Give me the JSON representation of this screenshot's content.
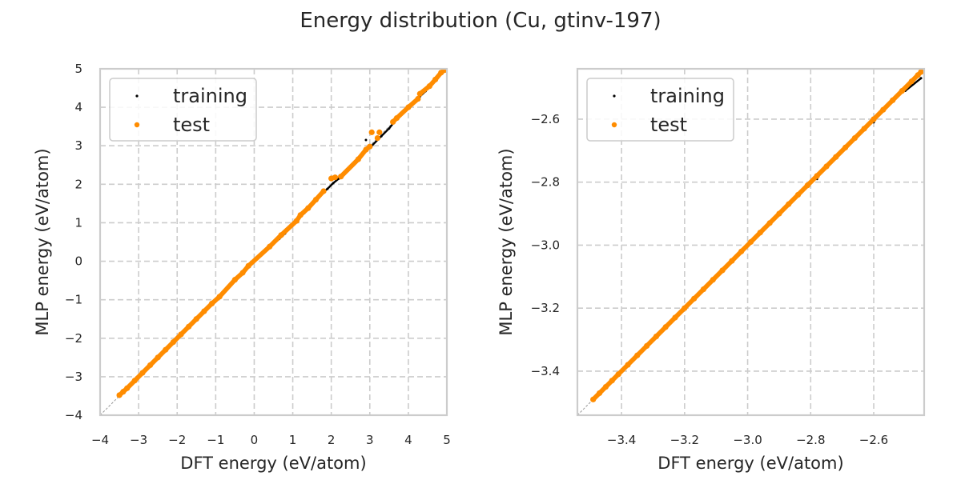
{
  "figure": {
    "title": "Energy distribution (Cu, gtinv-197)"
  },
  "colors": {
    "training": "#000000",
    "test": "#ff8c00",
    "grid": "#cccccc",
    "spine": "#cccccc",
    "diagonal": "#9a9a9a"
  },
  "chart_data": [
    {
      "type": "scatter",
      "xlabel": "DFT energy (eV/atom)",
      "ylabel": "MLP energy (eV/atom)",
      "xlim": [
        -4,
        5
      ],
      "ylim": [
        -4,
        5
      ],
      "xticks": [
        -4,
        -3,
        -2,
        -1,
        0,
        1,
        2,
        3,
        4,
        5
      ],
      "yticks": [
        -4,
        -3,
        -2,
        -1,
        0,
        1,
        2,
        3,
        4,
        5
      ],
      "xtick_labels": [
        "−4",
        "−3",
        "−2",
        "−1",
        "0",
        "1",
        "2",
        "3",
        "4",
        "5"
      ],
      "ytick_labels": [
        "−4",
        "−3",
        "−2",
        "−1",
        "0",
        "1",
        "2",
        "3",
        "4",
        "5"
      ],
      "grid": true,
      "legend_position": "upper left",
      "diagonal": true,
      "series": [
        {
          "name": "training",
          "marker_size": "small",
          "points": [
            [
              -3.5,
              -3.5
            ],
            [
              -3.2,
              -3.2
            ],
            [
              -2.9,
              -2.9
            ],
            [
              -2.5,
              -2.5
            ],
            [
              -2.1,
              -2.1
            ],
            [
              -1.6,
              -1.6
            ],
            [
              -1.1,
              -1.1
            ],
            [
              -0.85,
              -0.88
            ],
            [
              -0.4,
              -0.42
            ],
            [
              0.0,
              0.02
            ],
            [
              0.05,
              0.08
            ],
            [
              0.3,
              0.27
            ],
            [
              0.65,
              0.58
            ],
            [
              0.8,
              0.72
            ],
            [
              0.95,
              0.9
            ],
            [
              1.05,
              1.0
            ],
            [
              1.3,
              1.25
            ],
            [
              1.5,
              1.48
            ],
            [
              1.7,
              1.72
            ],
            [
              1.9,
              1.88
            ],
            [
              2.05,
              2.03
            ],
            [
              2.2,
              2.15
            ],
            [
              2.4,
              2.38
            ],
            [
              2.6,
              2.55
            ],
            [
              2.75,
              2.7
            ],
            [
              2.85,
              2.85
            ],
            [
              2.9,
              3.15
            ],
            [
              3.05,
              3.0
            ],
            [
              3.3,
              3.25
            ],
            [
              3.5,
              3.45
            ],
            [
              3.7,
              3.7
            ],
            [
              3.85,
              3.85
            ],
            [
              4.05,
              4.05
            ],
            [
              4.3,
              4.28
            ],
            [
              4.45,
              4.42
            ],
            [
              4.6,
              4.62
            ],
            [
              4.75,
              4.8
            ],
            [
              4.9,
              4.93
            ]
          ]
        },
        {
          "name": "test",
          "marker_size": "large",
          "points": [
            [
              -3.5,
              -3.48
            ],
            [
              -3.4,
              -3.39
            ],
            [
              -3.3,
              -3.3
            ],
            [
              -3.1,
              -3.1
            ],
            [
              -2.9,
              -2.9
            ],
            [
              -2.7,
              -2.7
            ],
            [
              -2.5,
              -2.5
            ],
            [
              -2.3,
              -2.3
            ],
            [
              -2.1,
              -2.1
            ],
            [
              -1.9,
              -1.9
            ],
            [
              -1.7,
              -1.7
            ],
            [
              -1.5,
              -1.5
            ],
            [
              -1.3,
              -1.3
            ],
            [
              -1.1,
              -1.1
            ],
            [
              -0.9,
              -0.92
            ],
            [
              -0.5,
              -0.48
            ],
            [
              -0.3,
              -0.3
            ],
            [
              -0.15,
              -0.12
            ],
            [
              0.4,
              0.38
            ],
            [
              0.7,
              0.68
            ],
            [
              1.1,
              1.05
            ],
            [
              1.2,
              1.2
            ],
            [
              1.4,
              1.38
            ],
            [
              1.6,
              1.6
            ],
            [
              1.8,
              1.82
            ],
            [
              2.0,
              2.15
            ],
            [
              2.1,
              2.18
            ],
            [
              2.25,
              2.2
            ],
            [
              2.7,
              2.65
            ],
            [
              2.9,
              2.9
            ],
            [
              3.0,
              2.98
            ],
            [
              3.05,
              3.35
            ],
            [
              3.2,
              3.2
            ],
            [
              3.25,
              3.35
            ],
            [
              3.6,
              3.62
            ],
            [
              3.7,
              3.72
            ],
            [
              4.0,
              4.0
            ],
            [
              4.25,
              4.22
            ],
            [
              4.3,
              4.35
            ],
            [
              4.55,
              4.55
            ],
            [
              4.7,
              4.72
            ],
            [
              4.85,
              4.9
            ],
            [
              4.95,
              4.97
            ]
          ]
        }
      ]
    },
    {
      "type": "scatter",
      "xlabel": "DFT energy (eV/atom)",
      "ylabel": "MLP energy (eV/atom)",
      "xlim": [
        -3.54,
        -2.44
      ],
      "ylim": [
        -3.54,
        -2.44
      ],
      "xticks": [
        -3.4,
        -3.2,
        -3.0,
        -2.8,
        -2.6
      ],
      "yticks": [
        -3.4,
        -3.2,
        -3.0,
        -2.8,
        -2.6
      ],
      "xtick_labels": [
        "−3.4",
        "−3.2",
        "−3.0",
        "−2.8",
        "−2.6"
      ],
      "ytick_labels": [
        "−3.4",
        "−3.2",
        "−3.0",
        "−2.8",
        "−2.6"
      ],
      "grid": true,
      "legend_position": "upper left",
      "diagonal": true,
      "series": [
        {
          "name": "training",
          "marker_size": "small",
          "points": [
            [
              -3.48,
              -3.48
            ],
            [
              -3.35,
              -3.35
            ],
            [
              -3.2,
              -3.2
            ],
            [
              -3.0,
              -3.0
            ],
            [
              -2.95,
              -2.95
            ],
            [
              -2.78,
              -2.79
            ],
            [
              -2.6,
              -2.61
            ],
            [
              -2.5,
              -2.51
            ],
            [
              -2.45,
              -2.47
            ]
          ]
        },
        {
          "name": "test",
          "marker_size": "large",
          "points": [
            [
              -3.49,
              -3.49
            ],
            [
              -3.47,
              -3.47
            ],
            [
              -3.45,
              -3.45
            ],
            [
              -3.43,
              -3.43
            ],
            [
              -3.41,
              -3.41
            ],
            [
              -3.38,
              -3.38
            ],
            [
              -3.35,
              -3.35
            ],
            [
              -3.32,
              -3.32
            ],
            [
              -3.29,
              -3.29
            ],
            [
              -3.26,
              -3.26
            ],
            [
              -3.23,
              -3.23
            ],
            [
              -3.2,
              -3.2
            ],
            [
              -3.17,
              -3.17
            ],
            [
              -3.14,
              -3.14
            ],
            [
              -3.11,
              -3.11
            ],
            [
              -3.08,
              -3.08
            ],
            [
              -3.05,
              -3.05
            ],
            [
              -3.02,
              -3.02
            ],
            [
              -2.99,
              -2.99
            ],
            [
              -2.96,
              -2.96
            ],
            [
              -2.93,
              -2.93
            ],
            [
              -2.9,
              -2.9
            ],
            [
              -2.87,
              -2.87
            ],
            [
              -2.84,
              -2.84
            ],
            [
              -2.81,
              -2.81
            ],
            [
              -2.78,
              -2.78
            ],
            [
              -2.75,
              -2.75
            ],
            [
              -2.72,
              -2.72
            ],
            [
              -2.69,
              -2.69
            ],
            [
              -2.66,
              -2.66
            ],
            [
              -2.63,
              -2.63
            ],
            [
              -2.6,
              -2.6
            ],
            [
              -2.57,
              -2.57
            ],
            [
              -2.54,
              -2.54
            ],
            [
              -2.51,
              -2.51
            ],
            [
              -2.48,
              -2.48
            ],
            [
              -2.46,
              -2.46
            ],
            [
              -2.45,
              -2.45
            ]
          ]
        }
      ]
    }
  ]
}
